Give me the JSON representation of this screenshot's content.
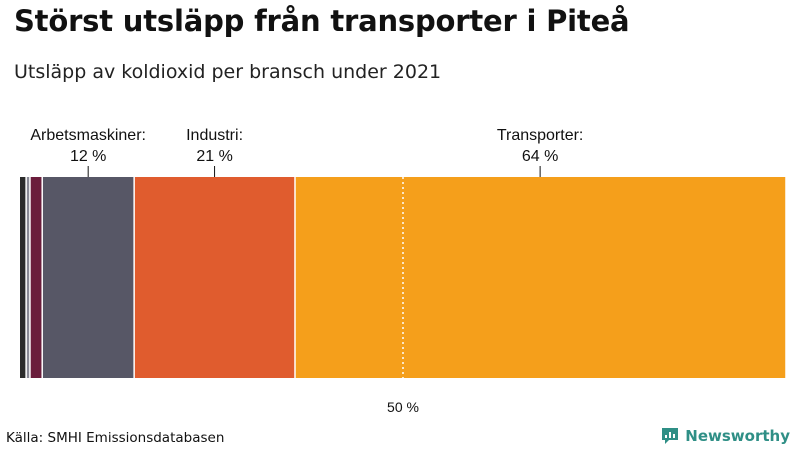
{
  "header": {
    "title": "Störst utsläpp från transporter i Piteå",
    "subtitle": "Utsläpp av koldioxid per bransch under 2021"
  },
  "footer": {
    "source": "Källa: SMHI Emissionsdatabasen",
    "brand": "Newsworthy",
    "brand_color": "#2f8f86"
  },
  "chart_data": {
    "type": "bar",
    "orientation": "horizontal-stacked-100",
    "title": "Störst utsläpp från transporter i Piteå",
    "subtitle": "Utsläpp av koldioxid per bransch under 2021",
    "xlim": [
      0,
      100
    ],
    "unit": "%",
    "series": [
      {
        "name": "",
        "value": 0.8,
        "color": "#2b2b2b",
        "label": ""
      },
      {
        "name": "",
        "value": 0.5,
        "color": "#8a8a96",
        "label": ""
      },
      {
        "name": "",
        "value": 1.6,
        "color": "#6b1d3c",
        "label": ""
      },
      {
        "name": "Arbetsmaskiner:",
        "value": 12,
        "value_label": "12 %",
        "color": "#575766"
      },
      {
        "name": "Industri:",
        "value": 21,
        "value_label": "21 %",
        "color": "#e05c2e"
      },
      {
        "name": "Transporter:",
        "value": 64,
        "value_label": "64 %",
        "color": "#f59f1b"
      }
    ],
    "reference_line": {
      "value": 50,
      "label": "50 %",
      "style": "dotted"
    }
  }
}
